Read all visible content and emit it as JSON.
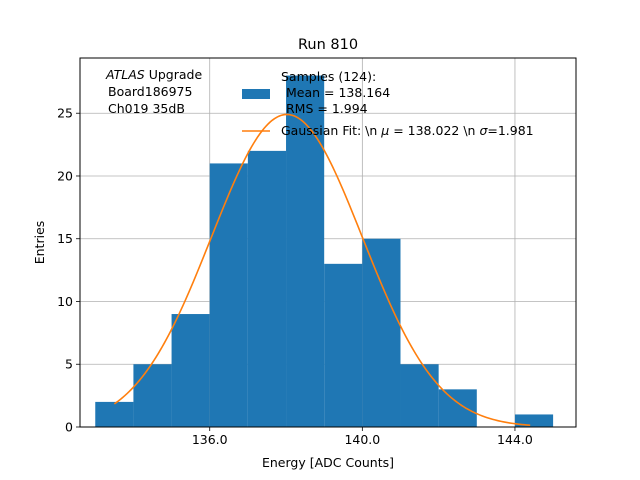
{
  "chart_data": {
    "type": "bar",
    "title": "Run 810",
    "xlabel": "Energy [ADC Counts]",
    "ylabel": "Entries",
    "xlim": [
      132.6,
      145.6
    ],
    "ylim": [
      0,
      29.4
    ],
    "xticks": [
      136.0,
      140.0,
      144.0
    ],
    "xtick_labels": [
      "136.0",
      "140.0",
      "144.0"
    ],
    "yticks": [
      0,
      5,
      10,
      15,
      20,
      25
    ],
    "ytick_labels": [
      "0",
      "5",
      "10",
      "15",
      "20",
      "25"
    ],
    "grid": true,
    "histogram": {
      "name": "Samples (124):",
      "color": "#1f77b4",
      "bins": [
        {
          "left": 133.0,
          "right": 134.0,
          "count": 2
        },
        {
          "left": 134.0,
          "right": 135.0,
          "count": 5
        },
        {
          "left": 135.0,
          "right": 136.0,
          "count": 9
        },
        {
          "left": 136.0,
          "right": 137.0,
          "count": 21
        },
        {
          "left": 137.0,
          "right": 138.0,
          "count": 22
        },
        {
          "left": 138.0,
          "right": 139.0,
          "count": 28
        },
        {
          "left": 139.0,
          "right": 140.0,
          "count": 13
        },
        {
          "left": 140.0,
          "right": 141.0,
          "count": 15
        },
        {
          "left": 141.0,
          "right": 142.0,
          "count": 5
        },
        {
          "left": 142.0,
          "right": 143.0,
          "count": 3
        },
        {
          "left": 143.0,
          "right": 144.0,
          "count": 0
        },
        {
          "left": 144.0,
          "right": 145.0,
          "count": 1
        }
      ]
    },
    "fit": {
      "color": "#ff7f0e",
      "mu": 138.022,
      "sigma": 1.981,
      "amplitude": 24.9,
      "x_range": [
        133.5,
        144.4
      ]
    },
    "annotation": {
      "experiment": "ATLAS",
      "label": "Upgrade",
      "board": "Board186975",
      "channel": "Ch019 35dB"
    },
    "legend": {
      "placement": "top",
      "hist_title": "Samples (124):",
      "hist_mean": "Mean = 138.164",
      "hist_rms": "RMS = 1.994",
      "fit_prefix": "Gaussian Fit: \\n ",
      "fit_mu_symbol": "μ",
      "fit_mu_text": " = 138.022 \\n ",
      "fit_sigma_symbol": "σ",
      "fit_sigma_text": "=1.981"
    }
  }
}
